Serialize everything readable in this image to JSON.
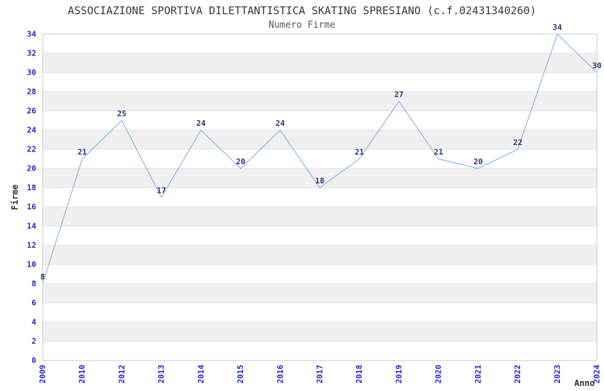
{
  "chart_data": {
    "type": "line",
    "title": "ASSOCIAZIONE SPORTIVA DILETTANTISTICA SKATING SPRESIANO (c.f.02431340260)",
    "subtitle": "Numero Firme",
    "xlabel": "Anno",
    "ylabel": "Firme",
    "categories": [
      "2009",
      "2010",
      "2012",
      "2013",
      "2014",
      "2015",
      "2016",
      "2017",
      "2018",
      "2019",
      "2020",
      "2021",
      "2022",
      "2023",
      "2024"
    ],
    "values": [
      8,
      21,
      25,
      17,
      24,
      20,
      24,
      18,
      21,
      27,
      21,
      20,
      22,
      34,
      30
    ],
    "ylim": [
      0,
      34
    ],
    "ytick_step": 2,
    "grid": "horizontal-bands-alternating",
    "legend": "none",
    "point_labels_shown": true,
    "colors": {
      "line": "#7fb2e8",
      "tick_label": "#2626cc",
      "data_label": "#30307f",
      "band_fill": "#f0f0f0",
      "grid_line": "#e0e0e0",
      "plot_border": "#c8c8c8",
      "title_text": "#3a3a3a",
      "subtitle_text": "#595959",
      "axis_label_text": "#333333",
      "background": "#ffffff"
    }
  }
}
